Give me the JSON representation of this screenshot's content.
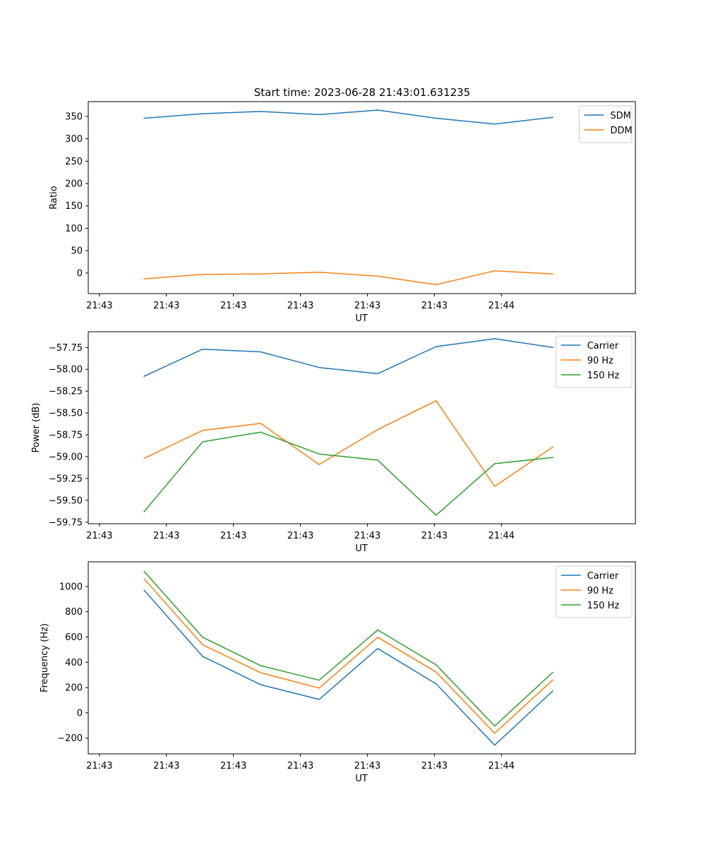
{
  "figure": {
    "title": "Start time: 2023-06-28 21:43:01.631235"
  },
  "chart_data": [
    {
      "type": "line",
      "xlabel": "UT",
      "ylabel": "Ratio",
      "xtick_labels": [
        "21:43",
        "21:43",
        "21:43",
        "21:43",
        "21:43",
        "21:43",
        "21:44"
      ],
      "xlim": [
        -0.125,
        1.1
      ],
      "yticks": [
        0,
        50,
        100,
        150,
        200,
        250,
        300,
        350
      ],
      "ylim": [
        -46,
        383
      ],
      "legend": "top-right",
      "x": [
        0,
        0.131,
        0.261,
        0.392,
        0.523,
        0.654,
        0.785,
        0.915
      ],
      "series": [
        {
          "name": "SDM",
          "color": "#1f77b4",
          "values": [
            346,
            356,
            361,
            354,
            364,
            346,
            333,
            348
          ]
        },
        {
          "name": "DDM",
          "color": "#ff7f0e",
          "values": [
            -13,
            -3,
            -2,
            2,
            -7,
            -26,
            5,
            -2
          ]
        }
      ]
    },
    {
      "type": "line",
      "xlabel": "UT",
      "ylabel": "Power (dB)",
      "xtick_labels": [
        "21:43",
        "21:43",
        "21:43",
        "21:43",
        "21:43",
        "21:43",
        "21:44"
      ],
      "xlim": [
        -0.125,
        1.1
      ],
      "yticks": [
        -59.75,
        -59.5,
        -59.25,
        -59.0,
        -58.75,
        -58.5,
        -58.25,
        -58.0,
        -57.75
      ],
      "ytick_labels": [
        "−59.75",
        "−59.50",
        "−59.25",
        "−59.00",
        "−58.75",
        "−58.50",
        "−58.25",
        "−58.00",
        "−57.75"
      ],
      "ylim": [
        -59.768,
        -57.57
      ],
      "legend": "top-right",
      "x": [
        0,
        0.131,
        0.261,
        0.392,
        0.523,
        0.654,
        0.785,
        0.915
      ],
      "series": [
        {
          "name": "Carrier",
          "color": "#1f77b4",
          "values": [
            -58.08,
            -57.77,
            -57.8,
            -57.98,
            -58.05,
            -57.74,
            -57.65,
            -57.75
          ]
        },
        {
          "name": "90 Hz",
          "color": "#ff7f0e",
          "values": [
            -59.02,
            -58.7,
            -58.62,
            -59.09,
            -58.69,
            -58.36,
            -59.34,
            -58.89
          ]
        },
        {
          "name": "150 Hz",
          "color": "#2ca02c",
          "values": [
            -59.63,
            -58.83,
            -58.72,
            -58.97,
            -59.04,
            -59.67,
            -59.08,
            -59.01
          ]
        }
      ]
    },
    {
      "type": "line",
      "xlabel": "UT",
      "ylabel": "Frequency (Hz)",
      "xtick_labels": [
        "21:43",
        "21:43",
        "21:43",
        "21:43",
        "21:43",
        "21:43",
        "21:44"
      ],
      "xlim": [
        -0.125,
        1.1
      ],
      "yticks": [
        -200,
        0,
        200,
        400,
        600,
        800,
        1000
      ],
      "ytick_labels": [
        "−200",
        "0",
        "200",
        "400",
        "600",
        "800",
        "1000"
      ],
      "ylim": [
        -325,
        1195
      ],
      "legend": "top-right",
      "x": [
        0,
        0.131,
        0.261,
        0.392,
        0.523,
        0.654,
        0.785,
        0.915
      ],
      "series": [
        {
          "name": "Carrier",
          "color": "#1f77b4",
          "values": [
            971,
            447,
            222,
            106,
            509,
            229,
            -256,
            173
          ]
        },
        {
          "name": "90 Hz",
          "color": "#ff7f0e",
          "values": [
            1061,
            539,
            317,
            196,
            598,
            322,
            -162,
            260
          ]
        },
        {
          "name": "150 Hz",
          "color": "#2ca02c",
          "values": [
            1120,
            598,
            373,
            258,
            656,
            379,
            -105,
            320
          ]
        }
      ]
    }
  ]
}
